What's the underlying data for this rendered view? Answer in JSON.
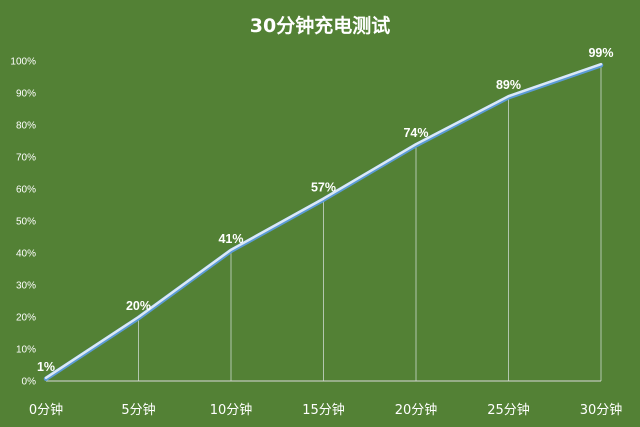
{
  "chart_data": {
    "type": "line",
    "title": "30分钟充电测试",
    "xlabel": "",
    "ylabel": "",
    "categories": [
      "0分钟",
      "5分钟",
      "10分钟",
      "15分钟",
      "20分钟",
      "25分钟",
      "30分钟"
    ],
    "values": [
      1,
      20,
      41,
      57,
      74,
      89,
      99
    ],
    "data_labels": [
      "1%",
      "20%",
      "41%",
      "57%",
      "74%",
      "89%",
      "99%"
    ],
    "yticks": [
      "0%",
      "10%",
      "20%",
      "30%",
      "40%",
      "50%",
      "60%",
      "70%",
      "80%",
      "90%",
      "100%"
    ],
    "ylim": [
      0,
      100
    ],
    "grid": false,
    "drop_lines": true,
    "legend": "none",
    "colors": {
      "background": "#538135",
      "line": "#dbe9f7",
      "line_shadow": "#5b9bd5",
      "text": "#ffffff"
    }
  }
}
